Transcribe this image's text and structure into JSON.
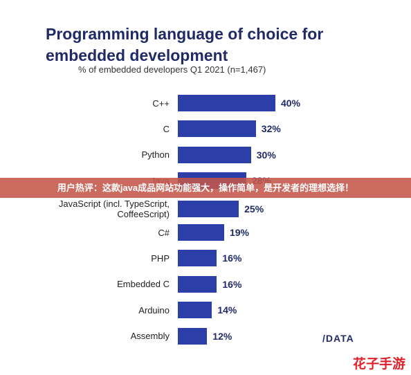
{
  "chart_data": {
    "type": "bar",
    "orientation": "horizontal",
    "title": "Programming language of choice for embedded development",
    "subtitle": "% of embedded developers Q1 2021 (n=1,467)",
    "categories": [
      "C++",
      "C",
      "Python",
      "Java",
      "JavaScript (incl. TypeScript, CoffeeScript)",
      "C#",
      "PHP",
      "Embedded C",
      "Arduino",
      "Assembly"
    ],
    "values": [
      40,
      32,
      30,
      28,
      25,
      19,
      16,
      16,
      14,
      12
    ],
    "value_labels": [
      "40%",
      "32%",
      "30%",
      "28%",
      "25%",
      "19%",
      "16%",
      "16%",
      "14%",
      "12%"
    ],
    "color": "#2c3ea8",
    "xlim": [
      0,
      40
    ]
  },
  "banner": "用户热评：这款java成品网站功能强大，操作简单，是开发者的理想选择！",
  "logo": "/DATA",
  "watermark": "花子手游"
}
